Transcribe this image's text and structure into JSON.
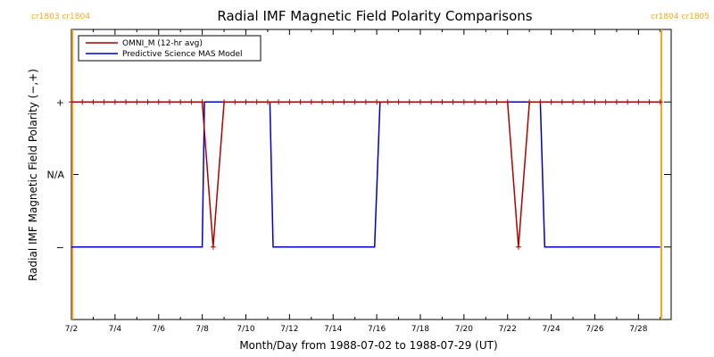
{
  "chart_data": {
    "type": "line",
    "title": "Radial IMF Magnetic Field Polarity Comparisons",
    "xlabel": "Month/Day from 1988-07-02 to 1988-07-29 (UT)",
    "ylabel": "Radial IMF Magnetic Field Polarity (−,+)",
    "xlim": [
      2.0,
      29.5
    ],
    "ylim": [
      -2,
      2
    ],
    "x_ticks": [
      {
        "value": 2,
        "label": "7/2"
      },
      {
        "value": 4,
        "label": "7/4"
      },
      {
        "value": 6,
        "label": "7/6"
      },
      {
        "value": 8,
        "label": "7/8"
      },
      {
        "value": 10,
        "label": "7/10"
      },
      {
        "value": 12,
        "label": "7/12"
      },
      {
        "value": 14,
        "label": "7/14"
      },
      {
        "value": 16,
        "label": "7/16"
      },
      {
        "value": 18,
        "label": "7/18"
      },
      {
        "value": 20,
        "label": "7/20"
      },
      {
        "value": 22,
        "label": "7/22"
      },
      {
        "value": 24,
        "label": "7/24"
      },
      {
        "value": 26,
        "label": "7/26"
      },
      {
        "value": 28,
        "label": "7/28"
      }
    ],
    "y_ticks": [
      {
        "value": 1,
        "label": "+"
      },
      {
        "value": 0,
        "label": "N/A"
      },
      {
        "value": -1,
        "label": "−"
      }
    ],
    "carrington_markers": [
      {
        "x": 2.05,
        "label": "cr1803 cr1804",
        "color": "#f5a623",
        "side": "left"
      },
      {
        "x": 29.05,
        "label": "cr1804 cr1805",
        "color": "#f5a623",
        "side": "right"
      }
    ],
    "legend_placement": "top-left",
    "series": [
      {
        "name": "OMNI_M (12-hr avg)",
        "color": "#b00000",
        "marker": "plus",
        "x": [
          2.0,
          2.5,
          3.0,
          3.5,
          4.0,
          4.5,
          5.0,
          5.5,
          6.0,
          6.5,
          7.0,
          7.5,
          8.0,
          8.5,
          9.0,
          9.5,
          10.0,
          10.5,
          11.0,
          11.5,
          12.0,
          12.5,
          13.0,
          13.5,
          14.0,
          14.5,
          15.0,
          15.5,
          16.0,
          16.5,
          17.0,
          17.5,
          18.0,
          18.5,
          19.0,
          19.5,
          20.0,
          20.5,
          21.0,
          21.5,
          22.0,
          22.5,
          23.0,
          23.5,
          24.0,
          24.5,
          25.0,
          25.5,
          26.0,
          26.5,
          27.0,
          27.5,
          28.0,
          28.5,
          29.0
        ],
        "y": [
          1,
          1,
          1,
          1,
          1,
          1,
          1,
          1,
          1,
          1,
          1,
          1,
          1,
          -1,
          1,
          1,
          1,
          1,
          1,
          1,
          1,
          1,
          1,
          1,
          1,
          1,
          1,
          1,
          1,
          1,
          1,
          1,
          1,
          1,
          1,
          1,
          1,
          1,
          1,
          1,
          1,
          -1,
          1,
          1,
          1,
          1,
          1,
          1,
          1,
          1,
          1,
          1,
          1,
          1,
          1
        ]
      },
      {
        "name": "Predictive Science MAS Model",
        "color": "#0000c8",
        "marker": "none",
        "x": [
          2.0,
          8.0,
          8.1,
          9.0,
          11.1,
          11.25,
          15.9,
          16.15,
          23.5,
          23.7,
          29.0
        ],
        "y": [
          -1,
          -1,
          1,
          1,
          1,
          -1,
          -1,
          1,
          1,
          -1,
          -1
        ]
      }
    ]
  }
}
